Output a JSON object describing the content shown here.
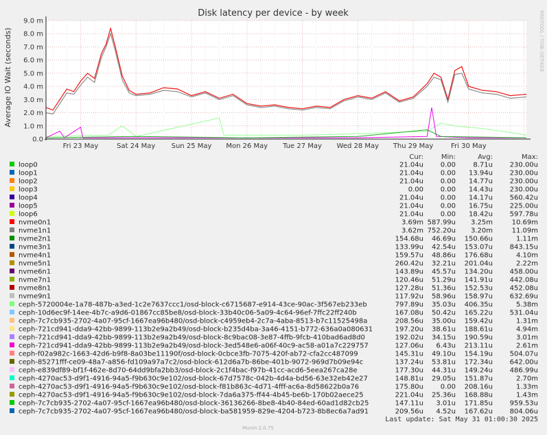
{
  "chart_data": {
    "type": "line",
    "title": "Disk latency per device - by week",
    "ylabel": "Average IO Wait (seconds)",
    "xlabel": "",
    "ylim": [
      0,
      0.009
    ],
    "y_ticks": [
      {
        "value": 0,
        "label": "0.0"
      },
      {
        "value": 0.001,
        "label": "1.0 m"
      },
      {
        "value": 0.002,
        "label": "2.0 m"
      },
      {
        "value": 0.003,
        "label": "3.0 m"
      },
      {
        "value": 0.004,
        "label": "4.0 m"
      },
      {
        "value": 0.005,
        "label": "5.0 m"
      },
      {
        "value": 0.006,
        "label": "6.0 m"
      },
      {
        "value": 0.007,
        "label": "7.0 m"
      },
      {
        "value": 0.008,
        "label": "8.0 m"
      },
      {
        "value": 0.009,
        "label": "9.0 m"
      }
    ],
    "x_range": [
      "2025-05-22T09:00",
      "2025-05-31T01:00"
    ],
    "x_ticks": [
      {
        "value": "2025-05-23",
        "label": "Fri 23 May"
      },
      {
        "value": "2025-05-24",
        "label": "Sat 24 May"
      },
      {
        "value": "2025-05-25",
        "label": "Sun 25 May"
      },
      {
        "value": "2025-05-26",
        "label": "Mon 26 May"
      },
      {
        "value": "2025-05-27",
        "label": "Tue 27 May"
      },
      {
        "value": "2025-05-28",
        "label": "Wed 28 May"
      },
      {
        "value": "2025-05-29",
        "label": "Thu 29 May"
      },
      {
        "value": "2025-05-30",
        "label": "Fri 30 May"
      }
    ],
    "grid": true,
    "legend_placement": "bottom",
    "side_label": "RRDTOOL / TOBI OETIKER",
    "legend_headers": {
      "cur": "Cur:",
      "min": "Min:",
      "avg": "Avg:",
      "max": "Max:"
    },
    "series_shapes": [
      {
        "name": "nvme0n1",
        "color": "#ee1111",
        "points": [
          [
            "2025-05-22T09:00",
            0.0024
          ],
          [
            "2025-05-22T12:00",
            0.0022
          ],
          [
            "2025-05-22T15:00",
            0.003
          ],
          [
            "2025-05-22T18:00",
            0.0038
          ],
          [
            "2025-05-22T21:00",
            0.0036
          ],
          [
            "2025-05-23T00:00",
            0.0044
          ],
          [
            "2025-05-23T03:00",
            0.005
          ],
          [
            "2025-05-23T06:00",
            0.0046
          ],
          [
            "2025-05-23T09:00",
            0.0065
          ],
          [
            "2025-05-23T11:00",
            0.0072
          ],
          [
            "2025-05-23T13:00",
            0.0084
          ],
          [
            "2025-05-23T15:00",
            0.007
          ],
          [
            "2025-05-23T18:00",
            0.0048
          ],
          [
            "2025-05-23T21:00",
            0.0037
          ],
          [
            "2025-05-24T00:00",
            0.0034
          ],
          [
            "2025-05-24T06:00",
            0.0035
          ],
          [
            "2025-05-24T12:00",
            0.0039
          ],
          [
            "2025-05-24T18:00",
            0.0038
          ],
          [
            "2025-05-25T00:00",
            0.0033
          ],
          [
            "2025-05-25T06:00",
            0.0036
          ],
          [
            "2025-05-25T12:00",
            0.0031
          ],
          [
            "2025-05-25T18:00",
            0.0034
          ],
          [
            "2025-05-26T00:00",
            0.0027
          ],
          [
            "2025-05-26T06:00",
            0.0025
          ],
          [
            "2025-05-26T12:00",
            0.0026
          ],
          [
            "2025-05-26T18:00",
            0.0024
          ],
          [
            "2025-05-27T00:00",
            0.0023
          ],
          [
            "2025-05-27T06:00",
            0.0025
          ],
          [
            "2025-05-27T12:00",
            0.0024
          ],
          [
            "2025-05-27T18:00",
            0.003
          ],
          [
            "2025-05-28T00:00",
            0.0033
          ],
          [
            "2025-05-28T06:00",
            0.0031
          ],
          [
            "2025-05-28T12:00",
            0.0036
          ],
          [
            "2025-05-28T18:00",
            0.0029
          ],
          [
            "2025-05-29T00:00",
            0.0032
          ],
          [
            "2025-05-29T06:00",
            0.0042
          ],
          [
            "2025-05-29T09:00",
            0.005
          ],
          [
            "2025-05-29T12:00",
            0.0047
          ],
          [
            "2025-05-29T15:00",
            0.003
          ],
          [
            "2025-05-29T18:00",
            0.0052
          ],
          [
            "2025-05-29T21:00",
            0.0055
          ],
          [
            "2025-05-30T00:00",
            0.004
          ],
          [
            "2025-05-30T06:00",
            0.0037
          ],
          [
            "2025-05-30T12:00",
            0.0036
          ],
          [
            "2025-05-30T18:00",
            0.0033
          ],
          [
            "2025-05-31T01:00",
            0.0034
          ]
        ]
      },
      {
        "name": "nvme1n1",
        "color": "#888888",
        "points": [
          [
            "2025-05-22T09:00",
            0.002
          ],
          [
            "2025-05-22T12:00",
            0.0019
          ],
          [
            "2025-05-22T15:00",
            0.0027
          ],
          [
            "2025-05-22T18:00",
            0.0035
          ],
          [
            "2025-05-22T21:00",
            0.0034
          ],
          [
            "2025-05-23T00:00",
            0.0041
          ],
          [
            "2025-05-23T03:00",
            0.0047
          ],
          [
            "2025-05-23T06:00",
            0.0043
          ],
          [
            "2025-05-23T09:00",
            0.0062
          ],
          [
            "2025-05-23T11:00",
            0.007
          ],
          [
            "2025-05-23T13:00",
            0.008
          ],
          [
            "2025-05-23T15:00",
            0.0067
          ],
          [
            "2025-05-23T18:00",
            0.0045
          ],
          [
            "2025-05-23T21:00",
            0.0035
          ],
          [
            "2025-05-24T00:00",
            0.0033
          ],
          [
            "2025-05-24T06:00",
            0.0034
          ],
          [
            "2025-05-24T12:00",
            0.0037
          ],
          [
            "2025-05-24T18:00",
            0.0036
          ],
          [
            "2025-05-25T00:00",
            0.0032
          ],
          [
            "2025-05-25T06:00",
            0.0035
          ],
          [
            "2025-05-25T12:00",
            0.003
          ],
          [
            "2025-05-25T18:00",
            0.0033
          ],
          [
            "2025-05-26T00:00",
            0.0026
          ],
          [
            "2025-05-26T06:00",
            0.0024
          ],
          [
            "2025-05-26T12:00",
            0.0025
          ],
          [
            "2025-05-26T18:00",
            0.0023
          ],
          [
            "2025-05-27T00:00",
            0.0022
          ],
          [
            "2025-05-27T06:00",
            0.0024
          ],
          [
            "2025-05-27T12:00",
            0.0023
          ],
          [
            "2025-05-27T18:00",
            0.0029
          ],
          [
            "2025-05-28T00:00",
            0.0032
          ],
          [
            "2025-05-28T06:00",
            0.003
          ],
          [
            "2025-05-28T12:00",
            0.0035
          ],
          [
            "2025-05-28T18:00",
            0.0028
          ],
          [
            "2025-05-29T00:00",
            0.0031
          ],
          [
            "2025-05-29T06:00",
            0.004
          ],
          [
            "2025-05-29T09:00",
            0.0047
          ],
          [
            "2025-05-29T12:00",
            0.0045
          ],
          [
            "2025-05-29T15:00",
            0.0028
          ],
          [
            "2025-05-29T18:00",
            0.0049
          ],
          [
            "2025-05-29T21:00",
            0.005
          ],
          [
            "2025-05-30T00:00",
            0.0038
          ],
          [
            "2025-05-30T06:00",
            0.0035
          ],
          [
            "2025-05-30T12:00",
            0.0034
          ],
          [
            "2025-05-30T18:00",
            0.0031
          ],
          [
            "2025-05-31T01:00",
            0.0032
          ]
        ]
      },
      {
        "name": "ceph-e839df89-bf1f-462e-8d70-64dd9bfa2bb3/osd-block-2c1f4bac-f97b-41cc-acd6-5eea267ca28e",
        "color": "#99ff99",
        "points": [
          [
            "2025-05-22T09:00",
            0.0002
          ],
          [
            "2025-05-23T12:00",
            0.0003
          ],
          [
            "2025-05-23T18:00",
            0.001
          ],
          [
            "2025-05-24T00:00",
            0.0002
          ],
          [
            "2025-05-25T12:00",
            0.0016
          ],
          [
            "2025-05-25T14:00",
            0.0003
          ],
          [
            "2025-05-27T00:00",
            0.0003
          ],
          [
            "2025-05-28T00:00",
            0.0004
          ],
          [
            "2025-05-29T06:00",
            0.0006
          ],
          [
            "2025-05-29T12:00",
            0.0012
          ],
          [
            "2025-05-29T18:00",
            0.001
          ],
          [
            "2025-05-30T06:00",
            0.0008
          ],
          [
            "2025-05-30T18:00",
            0.0005
          ],
          [
            "2025-05-31T01:00",
            0.0003
          ]
        ]
      },
      {
        "name": "ceph-721cd941-dda9-42bb-9899-113b2e9a2b49/osd-block-3ed548e6-a06f-40c9-ac58-a01a7c229757",
        "color": "#ee00ee",
        "points": [
          [
            "2025-05-22T09:00",
            0.0001
          ],
          [
            "2025-05-22T15:00",
            0.0006
          ],
          [
            "2025-05-22T17:00",
            0.0001
          ],
          [
            "2025-05-23T00:00",
            0.0009
          ],
          [
            "2025-05-23T01:00",
            0.0001
          ],
          [
            "2025-05-28T00:00",
            0.0001
          ],
          [
            "2025-05-29T06:00",
            0.0002
          ],
          [
            "2025-05-29T08:00",
            0.0024
          ],
          [
            "2025-05-29T10:00",
            0.0002
          ],
          [
            "2025-05-30T00:00",
            0.0001
          ],
          [
            "2025-05-31T01:00",
            0.0001
          ]
        ]
      },
      {
        "name": "ceph-7c7cb935-2702-4a07-95cf-1667ea96b480/osd-block-36136266-8be8-4b40-84ed-60ad1d82cb25",
        "color": "#22aa22",
        "points": [
          [
            "2025-05-22T09:00",
            0.0001
          ],
          [
            "2025-05-24T00:00",
            0.0002
          ],
          [
            "2025-05-26T00:00",
            0.0001
          ],
          [
            "2025-05-28T00:00",
            0.0002
          ],
          [
            "2025-05-29T06:00",
            0.0007
          ],
          [
            "2025-05-29T12:00",
            0.0002
          ],
          [
            "2025-05-31T01:00",
            0.0001
          ]
        ]
      }
    ],
    "series": [
      {
        "name": "loop0",
        "color": "#00cc00",
        "cur": "21.04u",
        "min": "0.00",
        "avg": "8.71u",
        "max": "230.00u"
      },
      {
        "name": "loop1",
        "color": "#0066b3",
        "cur": "21.04u",
        "min": "0.00",
        "avg": "13.94u",
        "max": "230.00u"
      },
      {
        "name": "loop2",
        "color": "#ff8000",
        "cur": "21.04u",
        "min": "0.00",
        "avg": "14.77u",
        "max": "230.00u"
      },
      {
        "name": "loop3",
        "color": "#ffcc00",
        "cur": "0.00",
        "min": "0.00",
        "avg": "14.43u",
        "max": "230.00u"
      },
      {
        "name": "loop4",
        "color": "#330099",
        "cur": "21.04u",
        "min": "0.00",
        "avg": "14.17u",
        "max": "560.42u"
      },
      {
        "name": "loop5",
        "color": "#990099",
        "cur": "21.04u",
        "min": "0.00",
        "avg": "16.75u",
        "max": "225.00u"
      },
      {
        "name": "loop6",
        "color": "#ccff00",
        "cur": "21.04u",
        "min": "0.00",
        "avg": "18.42u",
        "max": "597.78u"
      },
      {
        "name": "nvme0n1",
        "color": "#ff0000",
        "cur": "3.69m",
        "min": "587.99u",
        "avg": "3.25m",
        "max": "10.69m"
      },
      {
        "name": "nvme1n1",
        "color": "#808080",
        "cur": "3.62m",
        "min": "752.20u",
        "avg": "3.20m",
        "max": "11.09m"
      },
      {
        "name": "nvme2n1",
        "color": "#008f00",
        "cur": "154.68u",
        "min": "46.69u",
        "avg": "150.66u",
        "max": "1.11m"
      },
      {
        "name": "nvme3n1",
        "color": "#00487d",
        "cur": "133.99u",
        "min": "42.54u",
        "avg": "153.07u",
        "max": "843.15u"
      },
      {
        "name": "nvme4n1",
        "color": "#b35a00",
        "cur": "159.57u",
        "min": "48.86u",
        "avg": "176.68u",
        "max": "4.10m"
      },
      {
        "name": "nvme5n1",
        "color": "#b38f00",
        "cur": "260.42u",
        "min": "32.21u",
        "avg": "201.04u",
        "max": "2.22m"
      },
      {
        "name": "nvme6n1",
        "color": "#6b006b",
        "cur": "143.89u",
        "min": "45.57u",
        "avg": "134.20u",
        "max": "458.00u"
      },
      {
        "name": "nvme7n1",
        "color": "#8fb300",
        "cur": "120.46u",
        "min": "51.29u",
        "avg": "141.91u",
        "max": "442.08u"
      },
      {
        "name": "nvme8n1",
        "color": "#b30000",
        "cur": "127.28u",
        "min": "51.36u",
        "avg": "152.53u",
        "max": "452.08u"
      },
      {
        "name": "nvme9n1",
        "color": "#bebebe",
        "cur": "117.92u",
        "min": "58.96u",
        "avg": "158.97u",
        "max": "632.69u"
      },
      {
        "name": "ceph-5720004e-1a78-487b-a3ed-1c2e7637ccc1/osd-block-c6715687-e914-43ce-90ac-3f567eb233eb",
        "color": "#80ff80",
        "cur": "797.89u",
        "min": "35.03u",
        "avg": "406.35u",
        "max": "5.38m"
      },
      {
        "name": "ceph-10d6ec9f-14ee-4b7c-a9d6-01867cc85be8/osd-block-33b40c06-5a09-4c64-96ef-7ffc22ff240b",
        "color": "#80c9ff",
        "cur": "167.08u",
        "min": "50.42u",
        "avg": "165.22u",
        "max": "531.04u"
      },
      {
        "name": "ceph-7c7cb935-2702-4a07-95cf-1667ea96b480/osd-block-c4959eb4-2c7a-4aba-8513-b7c11525498a",
        "color": "#ffc080",
        "cur": "208.56u",
        "min": "35.00u",
        "avg": "159.42u",
        "max": "1.31m"
      },
      {
        "name": "ceph-721cd941-dda9-42bb-9899-113b2e9a2b49/osd-block-b235d4ba-3a46-4151-b772-636a0a080631",
        "color": "#ffe680",
        "cur": "197.20u",
        "min": "38.61u",
        "avg": "188.61u",
        "max": "4.94m"
      },
      {
        "name": "ceph-721cd941-dda9-42bb-9899-113b2e9a2b49/osd-block-8c9bac08-3e87-4ffb-9fcb-410bad6ad8d0",
        "color": "#aa80ff",
        "cur": "192.02u",
        "min": "34.15u",
        "avg": "190.59u",
        "max": "3.01m"
      },
      {
        "name": "ceph-721cd941-dda9-42bb-9899-113b2e9a2b49/osd-block-3ed548e6-a06f-40c9-ac58-a01a7c229757",
        "color": "#ee00cc",
        "cur": "127.06u",
        "min": "6.43u",
        "avg": "213.11u",
        "max": "2.61m"
      },
      {
        "name": "ceph-f02a982c-1663-42d6-b9f8-8a03be11190f/osd-block-0cbce3fb-7075-420f-ab72-cfa2cc487099",
        "color": "#ff8080",
        "cur": "145.31u",
        "min": "49.10u",
        "avg": "154.19u",
        "max": "504.07u"
      },
      {
        "name": "ceph-85271fff-ce09-48a7-a856-fd109a97a7c2/osd-block-612d6a7b-86be-401b-9072-969d7b09e94c",
        "color": "#666600",
        "cur": "137.24u",
        "min": "53.81u",
        "avg": "172.34u",
        "max": "642.00u"
      },
      {
        "name": "ceph-e839df89-bf1f-462e-8d70-64dd9bfa2bb3/osd-block-2c1f4bac-f97b-41cc-acd6-5eea267ca28e",
        "color": "#ffbfff",
        "cur": "177.30u",
        "min": "44.31u",
        "avg": "149.24u",
        "max": "486.99u"
      },
      {
        "name": "ceph-4270ac53-d9f1-4916-94a5-f9b630c9e102/osd-block-67d7578c-042b-4d4a-bd56-63e32eb42e27",
        "color": "#00ffcc",
        "cur": "148.81u",
        "min": "29.05u",
        "avg": "151.87u",
        "max": "2.70m"
      },
      {
        "name": "ceph-4270ac53-d9f1-4916-94a5-f9b630c9e102/osd-block-f81b863c-4d71-4fff-ac6a-8d58622b0a76",
        "color": "#cc6699",
        "cur": "175.80u",
        "min": "0.00",
        "avg": "208.16u",
        "max": "1.33m"
      },
      {
        "name": "ceph-4270ac53-d9f1-4916-94a5-f9b630c9e102/osd-block-7da6a375-ff44-4b45-be6b-170b02aece25",
        "color": "#999900",
        "cur": "221.04u",
        "min": "25.36u",
        "avg": "168.88u",
        "max": "1.43m"
      },
      {
        "name": "ceph-7c7cb935-2702-4a07-95cf-1667ea96b480/osd-block-36136266-8be8-4b40-84ed-60ad1d82cb25",
        "color": "#00cc00",
        "cur": "147.11u",
        "min": "3.01u",
        "avg": "171.85u",
        "max": "959.53u"
      },
      {
        "name": "ceph-7c7cb935-2702-4a07-95cf-1667ea96b480/osd-block-ba581959-829e-4204-b723-8b8ec6a7ad91",
        "color": "#0066b3",
        "cur": "209.56u",
        "min": "4.52u",
        "avg": "167.62u",
        "max": "804.06u"
      }
    ],
    "last_update": "Last update: Sat May 31 01:00:30 2025",
    "footer": "Munin 2.0.75"
  }
}
